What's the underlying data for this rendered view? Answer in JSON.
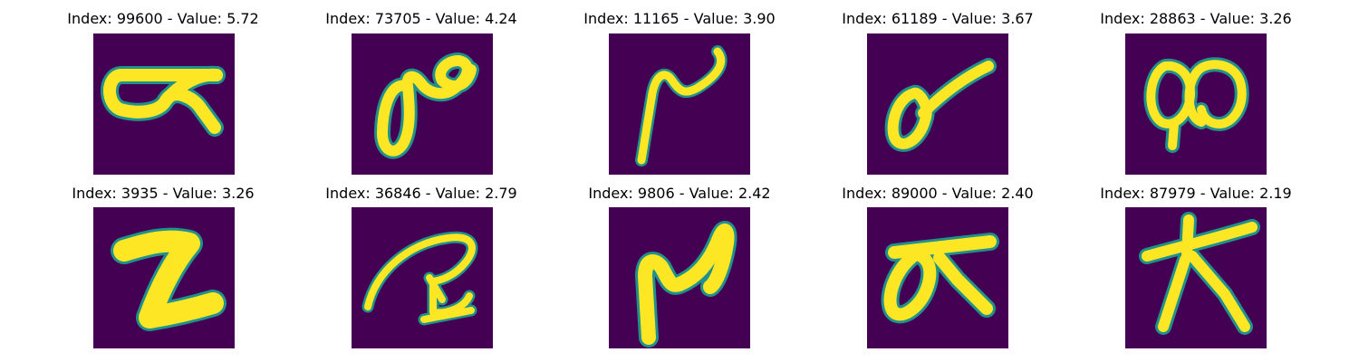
{
  "colors": {
    "background": "#440154",
    "edge": "#21918c",
    "stroke": "#fde725"
  },
  "panels": [
    {
      "title": "Index: 99600 - Value: 5.72"
    },
    {
      "title": "Index: 73705 - Value: 4.24"
    },
    {
      "title": "Index: 11165 - Value: 3.90"
    },
    {
      "title": "Index: 61189 - Value: 3.67"
    },
    {
      "title": "Index: 28863 - Value: 3.26"
    },
    {
      "title": "Index: 3935 - Value: 3.26"
    },
    {
      "title": "Index: 36846 - Value: 2.79"
    },
    {
      "title": "Index: 9806 - Value: 2.42"
    },
    {
      "title": "Index: 89000 - Value: 2.40"
    },
    {
      "title": "Index: 87979 - Value: 2.19"
    }
  ]
}
